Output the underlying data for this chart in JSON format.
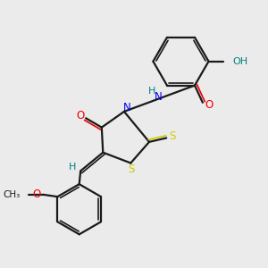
{
  "bg_color": "#ebebeb",
  "bond_color": "#1a1a1a",
  "N_color": "#0000ee",
  "O_color": "#ee0000",
  "S_color": "#cccc00",
  "OH_color": "#008080",
  "H_color": "#008080",
  "figsize": [
    3.0,
    3.0
  ],
  "dpi": 100,
  "xlim": [
    0,
    10
  ],
  "ylim": [
    0,
    10
  ]
}
